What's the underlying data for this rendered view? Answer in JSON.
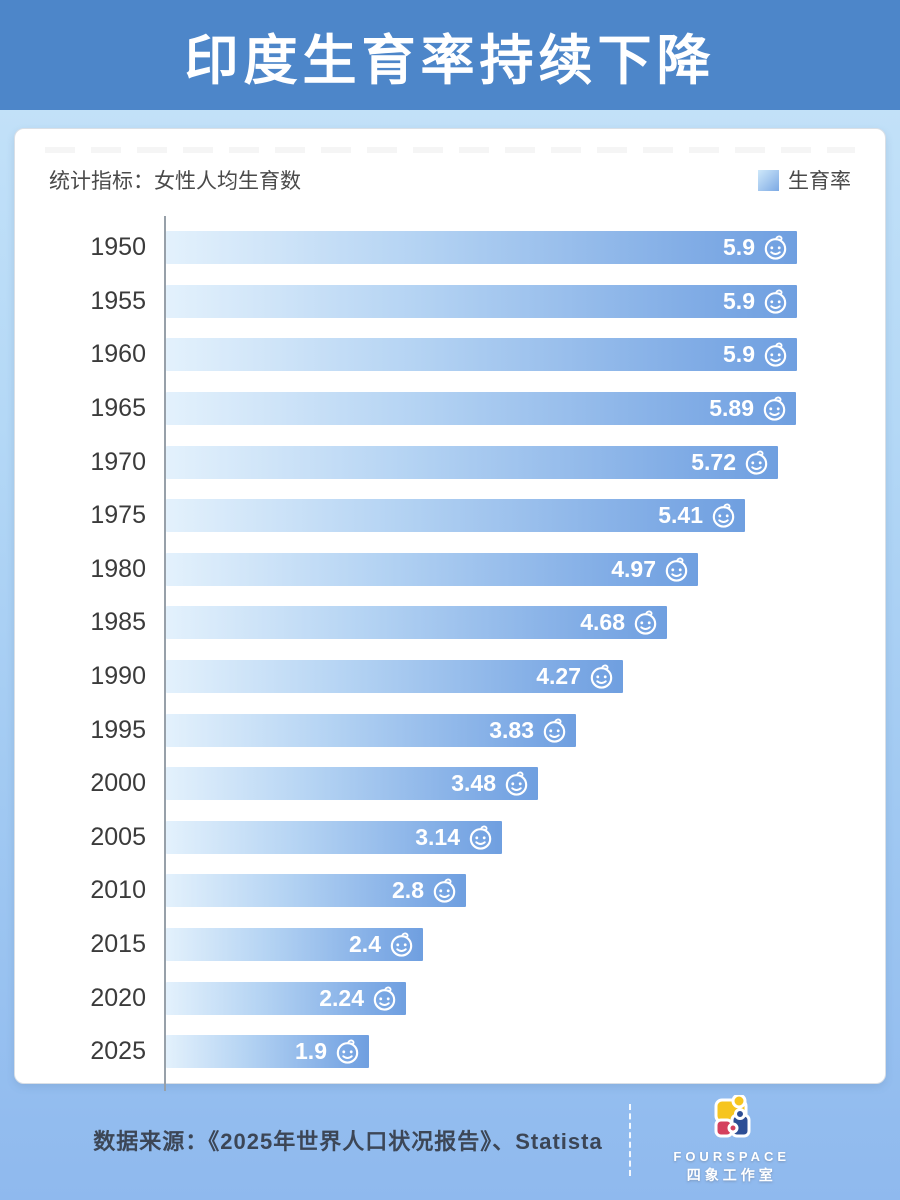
{
  "header": {
    "title": "印度生育率持续下降"
  },
  "card": {
    "indicator_label": "统计指标：女性人均生育数",
    "legend": {
      "label": "生育率"
    }
  },
  "chart_data": {
    "type": "bar",
    "orientation": "horizontal",
    "title": "印度生育率持续下降",
    "indicator": "统计指标：女性人均生育数",
    "legend": [
      "生育率"
    ],
    "categories": [
      "1950",
      "1955",
      "1960",
      "1965",
      "1970",
      "1975",
      "1980",
      "1985",
      "1990",
      "1995",
      "2000",
      "2005",
      "2010",
      "2015",
      "2020",
      "2025"
    ],
    "values": [
      5.9,
      5.9,
      5.9,
      5.89,
      5.72,
      5.41,
      4.97,
      4.68,
      4.27,
      3.83,
      3.48,
      3.14,
      2.8,
      2.4,
      2.24,
      1.9
    ],
    "xlim": [
      0,
      6.4
    ],
    "grid": false,
    "legend_position": "top-right",
    "bar_gradient": [
      "#e3f1fc",
      "#6f9fe0"
    ],
    "value_labels_inside_bar": true,
    "bar_end_icon": "baby-face-icon"
  },
  "footer": {
    "source_text": "数据来源：《2025年世界人口状况报告》、Statista",
    "logo": {
      "brand_en": "FOURSPACE",
      "brand_zh": "四象工作室",
      "piece_colors": {
        "yellow": "#f6c51f",
        "red": "#d4405e",
        "blue": "#2d4e95"
      }
    }
  },
  "colors": {
    "header_bg": "#4d86c9",
    "page_bg_top": "#c7e4f9",
    "page_bg_bottom": "#8fb9ee",
    "axis": "#97a0a9",
    "year_text": "#3b3b3b",
    "value_text": "#ffffff"
  }
}
